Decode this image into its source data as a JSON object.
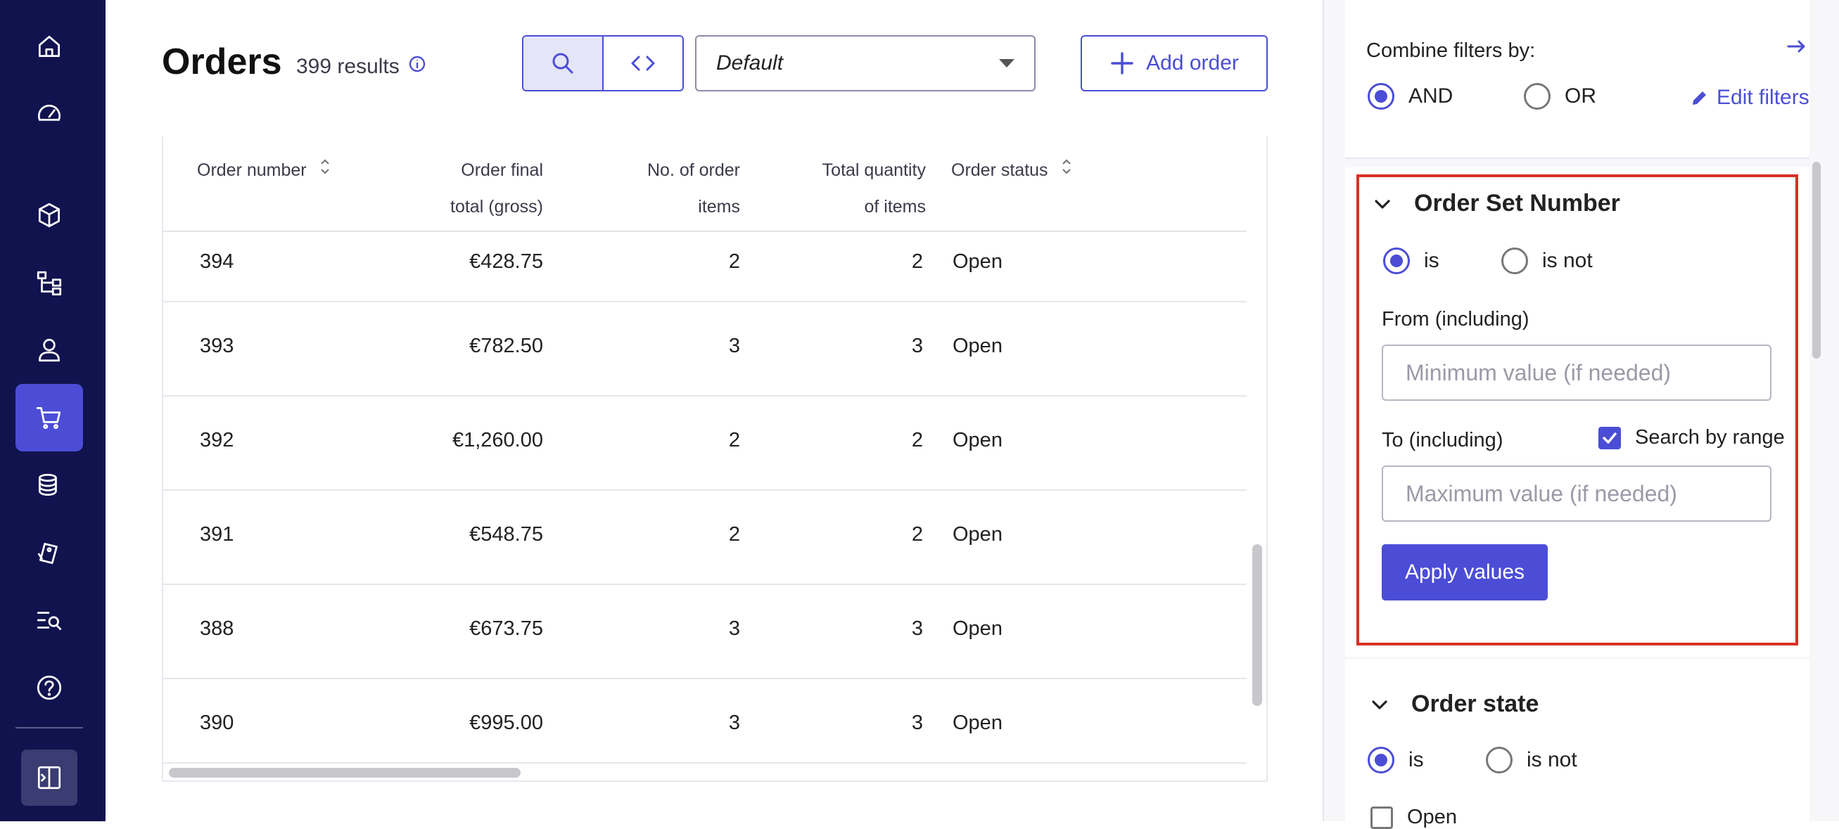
{
  "nav": {
    "items": [
      {
        "icon": "home-icon"
      },
      {
        "icon": "dashboard-icon"
      },
      {
        "icon": "box-icon"
      },
      {
        "icon": "hierarchy-icon"
      },
      {
        "icon": "user-icon"
      },
      {
        "icon": "cart-icon",
        "active": true
      },
      {
        "icon": "coins-icon"
      },
      {
        "icon": "tag-icon"
      },
      {
        "icon": "search-list-icon"
      },
      {
        "icon": "help-icon"
      }
    ],
    "collapse_icon": "collapse-sidebar-icon"
  },
  "header": {
    "title": "Orders",
    "results": "399 results",
    "view_select": "Default",
    "add_button": "Add order"
  },
  "table": {
    "columns": [
      {
        "label_1": "Order number",
        "label_2": ""
      },
      {
        "label_1": "Order final",
        "label_2": "total (gross)"
      },
      {
        "label_1": "No. of order",
        "label_2": "items"
      },
      {
        "label_1": "Total quantity",
        "label_2": "of items"
      },
      {
        "label_1": "Order status",
        "label_2": ""
      }
    ],
    "rows": [
      {
        "number": "394",
        "total": "€428.75",
        "items": "2",
        "quantity": "2",
        "status": "Open"
      },
      {
        "number": "393",
        "total": "€782.50",
        "items": "3",
        "quantity": "3",
        "status": "Open"
      },
      {
        "number": "392",
        "total": "€1,260.00",
        "items": "2",
        "quantity": "2",
        "status": "Open"
      },
      {
        "number": "391",
        "total": "€548.75",
        "items": "2",
        "quantity": "2",
        "status": "Open"
      },
      {
        "number": "388",
        "total": "€673.75",
        "items": "3",
        "quantity": "3",
        "status": "Open"
      },
      {
        "number": "390",
        "total": "€995.00",
        "items": "3",
        "quantity": "3",
        "status": "Open"
      }
    ]
  },
  "filters": {
    "combine_label": "Combine filters by:",
    "and_label": "AND",
    "or_label": "OR",
    "combine_selected": "AND",
    "edit_filters": "Edit filters",
    "order_set_number": {
      "title": "Order Set Number",
      "is_label": "is",
      "is_not_label": "is not",
      "selected": "is",
      "from_label": "From (including)",
      "from_placeholder": "Minimum value (if needed)",
      "to_label": "To (including)",
      "to_placeholder": "Maximum value (if needed)",
      "range_label": "Search by range",
      "range_checked": true,
      "apply_label": "Apply values"
    },
    "order_state": {
      "title": "Order state",
      "is_label": "is",
      "is_not_label": "is not",
      "selected": "is",
      "first_option": "Open"
    }
  }
}
